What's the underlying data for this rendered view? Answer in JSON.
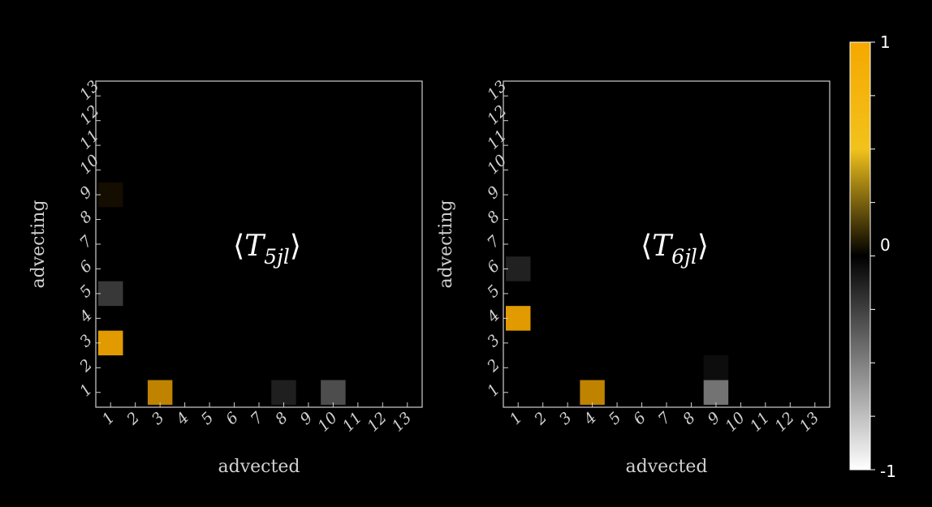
{
  "chart_data": [
    {
      "type": "heatmap",
      "title_main": "T",
      "title_sub": "5jl",
      "xlabel": "advected",
      "ylabel": "advecting",
      "x_categories": [
        "1",
        "2",
        "3",
        "4",
        "5",
        "6",
        "7",
        "8",
        "9",
        "10",
        "11",
        "12",
        "13"
      ],
      "y_categories": [
        "1",
        "2",
        "3",
        "4",
        "5",
        "6",
        "7",
        "8",
        "9",
        "10",
        "11",
        "12",
        "13"
      ],
      "cells": [
        {
          "x": 3,
          "y": 1,
          "value": 0.78
        },
        {
          "x": 8,
          "y": 1,
          "value": -0.12
        },
        {
          "x": 10,
          "y": 1,
          "value": -0.3
        },
        {
          "x": 1,
          "y": 3,
          "value": 0.92
        },
        {
          "x": 1,
          "y": 5,
          "value": -0.22
        },
        {
          "x": 1,
          "y": 9,
          "value": 0.08
        }
      ]
    },
    {
      "type": "heatmap",
      "title_main": "T",
      "title_sub": "6jl",
      "xlabel": "advected",
      "ylabel": "advecting",
      "x_categories": [
        "1",
        "2",
        "3",
        "4",
        "5",
        "6",
        "7",
        "8",
        "9",
        "10",
        "11",
        "12",
        "13"
      ],
      "y_categories": [
        "1",
        "2",
        "3",
        "4",
        "5",
        "6",
        "7",
        "8",
        "9",
        "10",
        "11",
        "12",
        "13"
      ],
      "cells": [
        {
          "x": 4,
          "y": 1,
          "value": 0.78
        },
        {
          "x": 9,
          "y": 1,
          "value": -0.45
        },
        {
          "x": 9,
          "y": 2,
          "value": -0.05
        },
        {
          "x": 1,
          "y": 4,
          "value": 0.92
        },
        {
          "x": 1,
          "y": 6,
          "value": -0.13
        }
      ]
    }
  ],
  "colorbar": {
    "min": -1,
    "max": 1,
    "tick_labels": [
      "1",
      "0",
      "-1"
    ],
    "positive_color": "#f5a800",
    "mid_color": "#000000",
    "negative_color": "#ffffff"
  }
}
